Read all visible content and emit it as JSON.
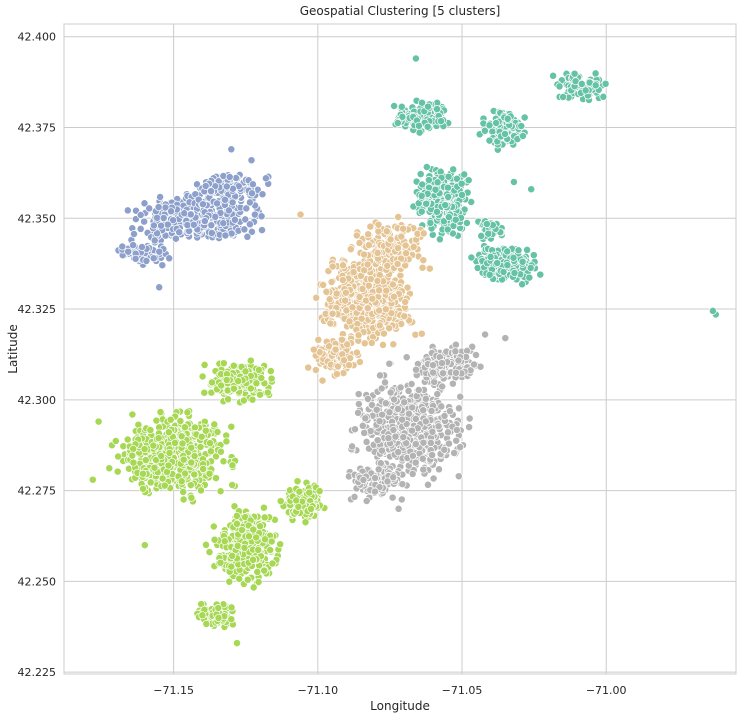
{
  "chart_data": {
    "type": "scatter",
    "title": "Geospatial Clustering [5 clusters]",
    "xlabel": "Longitude",
    "ylabel": "Latitude",
    "xlim": [
      -71.188,
      -70.955
    ],
    "ylim": [
      42.2245,
      42.4035
    ],
    "xticks": [
      -71.15,
      -71.1,
      -71.05,
      -71.0
    ],
    "xtick_labels": [
      "−71.15",
      "−71.10",
      "−71.05",
      "−71.00"
    ],
    "yticks": [
      42.225,
      42.25,
      42.275,
      42.3,
      42.325,
      42.35,
      42.375,
      42.4
    ],
    "ytick_labels": [
      "42.225",
      "42.250",
      "42.275",
      "42.300",
      "42.325",
      "42.350",
      "42.375",
      "42.400"
    ],
    "grid": true,
    "legend": "none",
    "clusters": [
      {
        "color": "#66c2a5",
        "regions": [
          {
            "cx": -71.057,
            "cy": 42.355,
            "rx": 0.011,
            "ry": 0.011,
            "n": 320
          },
          {
            "cx": -71.035,
            "cy": 42.337,
            "rx": 0.014,
            "ry": 0.006,
            "n": 230
          },
          {
            "cx": -71.064,
            "cy": 42.378,
            "rx": 0.011,
            "ry": 0.005,
            "n": 140
          },
          {
            "cx": -71.036,
            "cy": 42.375,
            "rx": 0.009,
            "ry": 0.007,
            "n": 130
          },
          {
            "cx": -71.008,
            "cy": 42.386,
            "rx": 0.012,
            "ry": 0.005,
            "n": 80
          },
          {
            "cx": -71.04,
            "cy": 42.347,
            "rx": 0.006,
            "ry": 0.004,
            "n": 40
          }
        ],
        "outliers": [
          [
            -70.962,
            42.3235
          ],
          [
            -70.963,
            42.3245
          ],
          [
            -71.066,
            42.394
          ],
          [
            -71.029,
            42.338
          ],
          [
            -71.032,
            42.36
          ],
          [
            -71.026,
            42.358
          ]
        ]
      },
      {
        "color": "#8da0cb",
        "regions": [
          {
            "cx": -71.143,
            "cy": 42.35,
            "rx": 0.027,
            "ry": 0.008,
            "n": 360
          },
          {
            "cx": -71.13,
            "cy": 42.358,
            "rx": 0.015,
            "ry": 0.005,
            "n": 140
          },
          {
            "cx": -71.16,
            "cy": 42.34,
            "rx": 0.012,
            "ry": 0.004,
            "n": 70
          }
        ],
        "outliers": [
          [
            -71.155,
            42.331
          ],
          [
            -71.13,
            42.369
          ],
          [
            -71.123,
            42.366
          ],
          [
            -71.118,
            42.361
          ]
        ]
      },
      {
        "color": "#e5c494",
        "regions": [
          {
            "cx": -71.083,
            "cy": 42.328,
            "rx": 0.021,
            "ry": 0.016,
            "n": 480
          },
          {
            "cx": -71.075,
            "cy": 42.342,
            "rx": 0.015,
            "ry": 0.009,
            "n": 160
          },
          {
            "cx": -71.094,
            "cy": 42.312,
            "rx": 0.011,
            "ry": 0.007,
            "n": 90
          }
        ],
        "outliers": [
          [
            -71.106,
            42.351
          ]
        ]
      },
      {
        "color": "#b3b3b3",
        "regions": [
          {
            "cx": -71.068,
            "cy": 42.292,
            "rx": 0.023,
            "ry": 0.018,
            "n": 560
          },
          {
            "cx": -71.055,
            "cy": 42.31,
            "rx": 0.015,
            "ry": 0.007,
            "n": 140
          },
          {
            "cx": -71.08,
            "cy": 42.277,
            "rx": 0.013,
            "ry": 0.006,
            "n": 110
          }
        ],
        "outliers": [
          [
            -71.042,
            42.318
          ],
          [
            -71.035,
            42.317
          ],
          [
            -71.072,
            42.27
          ]
        ]
      },
      {
        "color": "#a6d854",
        "regions": [
          {
            "cx": -71.15,
            "cy": 42.285,
            "rx": 0.025,
            "ry": 0.014,
            "n": 560
          },
          {
            "cx": -71.125,
            "cy": 42.26,
            "rx": 0.014,
            "ry": 0.012,
            "n": 330
          },
          {
            "cx": -71.127,
            "cy": 42.305,
            "rx": 0.014,
            "ry": 0.007,
            "n": 160
          },
          {
            "cx": -71.105,
            "cy": 42.272,
            "rx": 0.01,
            "ry": 0.007,
            "n": 130
          },
          {
            "cx": -71.135,
            "cy": 42.241,
            "rx": 0.008,
            "ry": 0.005,
            "n": 80
          }
        ],
        "outliers": [
          [
            -71.178,
            42.278
          ],
          [
            -71.176,
            42.294
          ],
          [
            -71.128,
            42.233
          ],
          [
            -71.116,
            42.261
          ],
          [
            -71.16,
            42.26
          ]
        ]
      }
    ]
  }
}
